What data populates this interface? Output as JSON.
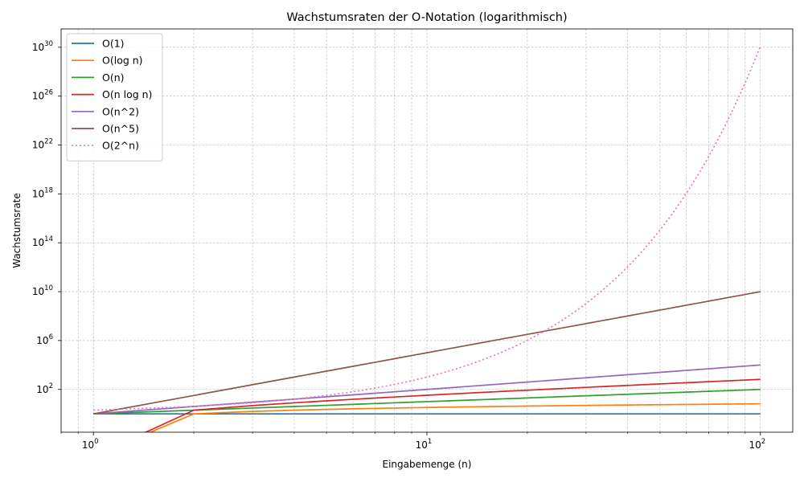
{
  "chart_data": {
    "type": "line",
    "title": "Wachstumsraten der O-Notation (logarithmisch)",
    "xlabel": "Eingabemenge (n)",
    "ylabel": "Wachstumsrate",
    "xscale": "log",
    "yscale": "log",
    "xlim": [
      0.8,
      125
    ],
    "ylim": [
      0.0316,
      3.16e+31
    ],
    "x_ticks": [
      {
        "value": 1,
        "base": "10",
        "exp": "0"
      },
      {
        "value": 10,
        "base": "10",
        "exp": "1"
      },
      {
        "value": 100,
        "base": "10",
        "exp": "2"
      }
    ],
    "y_ticks": [
      {
        "value": 100,
        "base": "10",
        "exp": "2"
      },
      {
        "value": 1000000.0,
        "base": "10",
        "exp": "6"
      },
      {
        "value": 10000000000.0,
        "base": "10",
        "exp": "10"
      },
      {
        "value": 100000000000000.0,
        "base": "10",
        "exp": "14"
      },
      {
        "value": 1e+18,
        "base": "10",
        "exp": "18"
      },
      {
        "value": 1e+22,
        "base": "10",
        "exp": "22"
      },
      {
        "value": 1e+26,
        "base": "10",
        "exp": "26"
      },
      {
        "value": 1e+30,
        "base": "10",
        "exp": "30"
      }
    ],
    "grid": true,
    "legend_position": "top-left",
    "x_range": [
      1,
      100
    ],
    "series": [
      {
        "name": "O(1)",
        "function": "constant",
        "color": "#1f77b4",
        "style": "solid"
      },
      {
        "name": "O(log n)",
        "function": "log n",
        "color": "#ff7f0e",
        "style": "solid"
      },
      {
        "name": "O(n)",
        "function": "n",
        "color": "#2ca02c",
        "style": "solid"
      },
      {
        "name": "O(n log n)",
        "function": "n log n",
        "color": "#d62728",
        "style": "solid"
      },
      {
        "name": "O(n^2)",
        "function": "n^2",
        "color": "#9467bd",
        "style": "solid"
      },
      {
        "name": "O(n^5)",
        "function": "n^5",
        "color": "#8c564b",
        "style": "solid"
      },
      {
        "name": "O(2^n)",
        "function": "2^n",
        "color": "#e377c2",
        "style": "dotted"
      }
    ]
  }
}
